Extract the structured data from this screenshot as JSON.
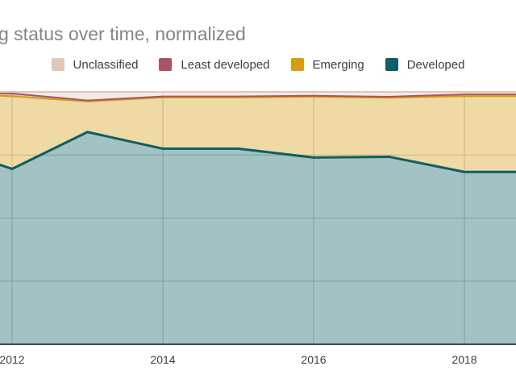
{
  "title": "g status over time, normalized",
  "legend": {
    "position": "top",
    "items": [
      {
        "label": "Unclassified",
        "color": "#e0c8b4"
      },
      {
        "label": "Least developed",
        "color": "#a85561"
      },
      {
        "label": "Emerging",
        "color": "#d69c12"
      },
      {
        "label": "Developed",
        "color": "#0d5f63"
      }
    ]
  },
  "chart_data": {
    "type": "area",
    "stacked": true,
    "normalized_percent": true,
    "title": "g status over time, normalized",
    "x": [
      2011,
      2012,
      2013,
      2014,
      2015,
      2016,
      2017,
      2018,
      2019
    ],
    "series": [
      {
        "name": "Developed",
        "color": "#0d5f63",
        "values": [
          79.4,
          69.5,
          84.1,
          77.5,
          77.5,
          74.0,
          74.3,
          68.3,
          68.3
        ]
      },
      {
        "name": "Emerging",
        "color": "#d69c12",
        "values": [
          20.1,
          28.8,
          12.1,
          20.3,
          20.3,
          24.1,
          23.4,
          30.0,
          30.0
        ]
      },
      {
        "name": "Least developed",
        "color": "#a85561",
        "values": [
          0.5,
          1.1,
          0.4,
          0.4,
          0.4,
          0.4,
          0.4,
          0.7,
          0.7
        ]
      },
      {
        "name": "Unclassified",
        "color": "#e0c8b4",
        "values": [
          0.0,
          0.6,
          3.4,
          1.8,
          1.8,
          1.5,
          1.9,
          1.0,
          1.0
        ]
      }
    ],
    "stack_order": "bottom-to-top",
    "x_tick_labels": [
      "2012",
      "2014",
      "2016",
      "2018"
    ],
    "x_tick_years": [
      2012,
      2014,
      2016,
      2018
    ],
    "ylim": [
      0,
      100
    ],
    "y_gridlines_percent": [
      25,
      50,
      75
    ],
    "grid": true,
    "legend_position": "top",
    "fill_opacity": 0.38,
    "colors": {
      "grid": "#c4c4c4",
      "axis": "#45484b",
      "title_text": "#80868b",
      "tick_text": "#3c4043",
      "background": "#ffffff"
    }
  }
}
